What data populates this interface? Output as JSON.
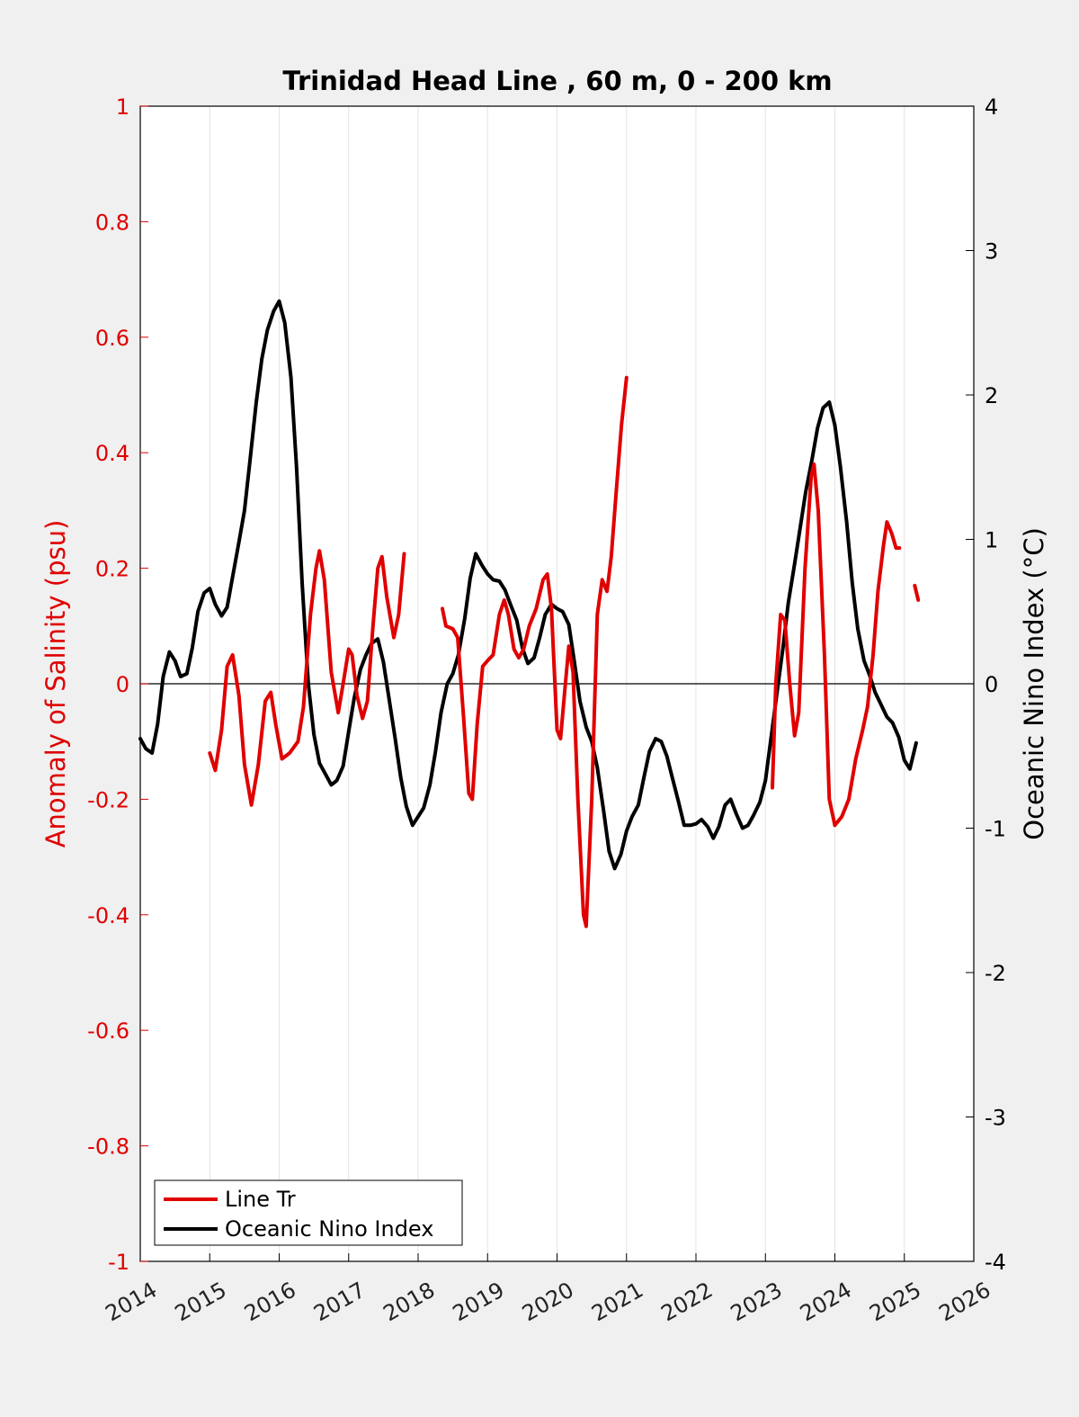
{
  "chart_data": {
    "type": "line",
    "title": "Trinidad Head Line , 60 m, 0 - 200 km",
    "ylabel_left": "Anomaly of Salinity (psu)",
    "ylabel_right": "Oceanic Nino Index (°C)",
    "xlim": [
      2014,
      2026
    ],
    "ylim_left": [
      -1,
      1
    ],
    "ylim_right": [
      -4,
      4
    ],
    "x_ticks": [
      "2014",
      "2015",
      "2016",
      "2017",
      "2018",
      "2019",
      "2020",
      "2021",
      "2022",
      "2023",
      "2024",
      "2025",
      "2026"
    ],
    "y_left_ticks": [
      "-1",
      "-0.8",
      "-0.6",
      "-0.4",
      "-0.2",
      "0",
      "0.2",
      "0.4",
      "0.6",
      "0.8",
      "1"
    ],
    "y_right_ticks": [
      "-4",
      "-3",
      "-2",
      "-1",
      "0",
      "1",
      "2",
      "3",
      "4"
    ],
    "grid": "vertical",
    "legend_position": "bottom-left",
    "colors": {
      "salinity": "#e00000",
      "oni": "#000000",
      "left_axis": "#e00000",
      "right_axis": "#000000"
    },
    "series": [
      {
        "name": "Line Tr",
        "axis": "left",
        "segments": [
          [
            [
              2015.0,
              -0.12
            ],
            [
              2015.08,
              -0.15
            ],
            [
              2015.17,
              -0.08
            ],
            [
              2015.25,
              0.03
            ],
            [
              2015.33,
              0.05
            ],
            [
              2015.42,
              -0.02
            ],
            [
              2015.5,
              -0.14
            ],
            [
              2015.6,
              -0.21
            ],
            [
              2015.7,
              -0.14
            ],
            [
              2015.8,
              -0.03
            ],
            [
              2015.88,
              -0.015
            ],
            [
              2015.95,
              -0.07
            ],
            [
              2016.04,
              -0.13
            ],
            [
              2016.15,
              -0.12
            ],
            [
              2016.27,
              -0.1
            ],
            [
              2016.35,
              -0.04
            ],
            [
              2016.45,
              0.12
            ],
            [
              2016.53,
              0.2
            ],
            [
              2016.58,
              0.23
            ],
            [
              2016.65,
              0.18
            ],
            [
              2016.75,
              0.02
            ],
            [
              2016.85,
              -0.05
            ],
            [
              2016.92,
              0.0
            ],
            [
              2017.0,
              0.06
            ],
            [
              2017.05,
              0.05
            ],
            [
              2017.12,
              -0.02
            ],
            [
              2017.2,
              -0.06
            ],
            [
              2017.27,
              -0.03
            ],
            [
              2017.35,
              0.1
            ],
            [
              2017.42,
              0.2
            ],
            [
              2017.48,
              0.22
            ],
            [
              2017.55,
              0.15
            ],
            [
              2017.65,
              0.08
            ],
            [
              2017.72,
              0.12
            ],
            [
              2017.8,
              0.225
            ]
          ],
          [
            [
              2018.35,
              0.13
            ],
            [
              2018.4,
              0.1
            ],
            [
              2018.5,
              0.095
            ],
            [
              2018.57,
              0.08
            ],
            [
              2018.65,
              -0.05
            ],
            [
              2018.73,
              -0.19
            ],
            [
              2018.78,
              -0.2
            ],
            [
              2018.85,
              -0.07
            ],
            [
              2018.93,
              0.03
            ],
            [
              2019.0,
              0.04
            ],
            [
              2019.08,
              0.05
            ],
            [
              2019.17,
              0.12
            ],
            [
              2019.24,
              0.145
            ],
            [
              2019.3,
              0.12
            ],
            [
              2019.38,
              0.06
            ],
            [
              2019.45,
              0.045
            ],
            [
              2019.52,
              0.06
            ],
            [
              2019.6,
              0.1
            ],
            [
              2019.7,
              0.13
            ],
            [
              2019.8,
              0.18
            ],
            [
              2019.86,
              0.19
            ],
            [
              2019.92,
              0.13
            ],
            [
              2020.0,
              -0.08
            ],
            [
              2020.05,
              -0.095
            ],
            [
              2020.12,
              0.0
            ],
            [
              2020.17,
              0.065
            ],
            [
              2020.23,
              0.02
            ],
            [
              2020.3,
              -0.2
            ],
            [
              2020.38,
              -0.4
            ],
            [
              2020.42,
              -0.42
            ],
            [
              2020.5,
              -0.2
            ],
            [
              2020.58,
              0.12
            ],
            [
              2020.65,
              0.18
            ],
            [
              2020.72,
              0.16
            ],
            [
              2020.78,
              0.22
            ],
            [
              2020.85,
              0.33
            ],
            [
              2020.93,
              0.45
            ],
            [
              2021.0,
              0.53
            ]
          ],
          [
            [
              2023.1,
              -0.18
            ],
            [
              2023.15,
              0.0
            ],
            [
              2023.22,
              0.12
            ],
            [
              2023.28,
              0.11
            ],
            [
              2023.35,
              0.0
            ],
            [
              2023.42,
              -0.09
            ],
            [
              2023.48,
              -0.05
            ],
            [
              2023.57,
              0.2
            ],
            [
              2023.66,
              0.36
            ],
            [
              2023.7,
              0.38
            ],
            [
              2023.76,
              0.3
            ],
            [
              2023.85,
              0.05
            ],
            [
              2023.92,
              -0.2
            ],
            [
              2024.0,
              -0.245
            ],
            [
              2024.1,
              -0.23
            ],
            [
              2024.2,
              -0.2
            ],
            [
              2024.3,
              -0.13
            ],
            [
              2024.4,
              -0.08
            ],
            [
              2024.47,
              -0.04
            ],
            [
              2024.55,
              0.05
            ],
            [
              2024.62,
              0.16
            ],
            [
              2024.7,
              0.24
            ],
            [
              2024.75,
              0.28
            ],
            [
              2024.82,
              0.26
            ],
            [
              2024.88,
              0.235
            ],
            [
              2024.93,
              0.235
            ]
          ],
          [
            [
              2025.15,
              0.17
            ],
            [
              2025.2,
              0.145
            ]
          ]
        ]
      },
      {
        "name": "Oceanic Nino Index",
        "axis": "right",
        "segments": [
          [
            [
              2014.0,
              -0.38
            ],
            [
              2014.08,
              -0.45
            ],
            [
              2014.17,
              -0.48
            ],
            [
              2014.25,
              -0.28
            ],
            [
              2014.33,
              0.05
            ],
            [
              2014.42,
              0.22
            ],
            [
              2014.5,
              0.16
            ],
            [
              2014.58,
              0.05
            ],
            [
              2014.67,
              0.07
            ],
            [
              2014.75,
              0.25
            ],
            [
              2014.83,
              0.5
            ],
            [
              2014.92,
              0.63
            ],
            [
              2015.0,
              0.66
            ],
            [
              2015.08,
              0.55
            ],
            [
              2015.17,
              0.47
            ],
            [
              2015.25,
              0.53
            ],
            [
              2015.33,
              0.74
            ],
            [
              2015.42,
              0.98
            ],
            [
              2015.5,
              1.2
            ],
            [
              2015.58,
              1.55
            ],
            [
              2015.67,
              1.95
            ],
            [
              2015.75,
              2.25
            ],
            [
              2015.83,
              2.45
            ],
            [
              2015.92,
              2.58
            ],
            [
              2016.0,
              2.65
            ],
            [
              2016.08,
              2.5
            ],
            [
              2016.17,
              2.12
            ],
            [
              2016.25,
              1.5
            ],
            [
              2016.33,
              0.7
            ],
            [
              2016.42,
              0.0
            ],
            [
              2016.5,
              -0.35
            ],
            [
              2016.58,
              -0.55
            ],
            [
              2016.67,
              -0.63
            ],
            [
              2016.75,
              -0.7
            ],
            [
              2016.83,
              -0.67
            ],
            [
              2016.92,
              -0.57
            ],
            [
              2017.0,
              -0.33
            ],
            [
              2017.08,
              -0.1
            ],
            [
              2017.17,
              0.1
            ],
            [
              2017.25,
              0.2
            ],
            [
              2017.33,
              0.28
            ],
            [
              2017.42,
              0.31
            ],
            [
              2017.5,
              0.15
            ],
            [
              2017.58,
              -0.1
            ],
            [
              2017.67,
              -0.38
            ],
            [
              2017.75,
              -0.65
            ],
            [
              2017.83,
              -0.85
            ],
            [
              2017.92,
              -0.98
            ],
            [
              2018.0,
              -0.92
            ],
            [
              2018.08,
              -0.86
            ],
            [
              2018.17,
              -0.7
            ],
            [
              2018.25,
              -0.47
            ],
            [
              2018.33,
              -0.2
            ],
            [
              2018.42,
              0.0
            ],
            [
              2018.5,
              0.07
            ],
            [
              2018.58,
              0.2
            ],
            [
              2018.67,
              0.45
            ],
            [
              2018.75,
              0.73
            ],
            [
              2018.83,
              0.9
            ],
            [
              2018.92,
              0.82
            ],
            [
              2019.0,
              0.76
            ],
            [
              2019.08,
              0.72
            ],
            [
              2019.17,
              0.71
            ],
            [
              2019.25,
              0.65
            ],
            [
              2019.33,
              0.55
            ],
            [
              2019.42,
              0.44
            ],
            [
              2019.5,
              0.25
            ],
            [
              2019.58,
              0.14
            ],
            [
              2019.67,
              0.18
            ],
            [
              2019.75,
              0.32
            ],
            [
              2019.83,
              0.48
            ],
            [
              2019.92,
              0.55
            ],
            [
              2020.0,
              0.52
            ],
            [
              2020.08,
              0.5
            ],
            [
              2020.17,
              0.41
            ],
            [
              2020.25,
              0.15
            ],
            [
              2020.33,
              -0.12
            ],
            [
              2020.42,
              -0.3
            ],
            [
              2020.5,
              -0.4
            ],
            [
              2020.58,
              -0.58
            ],
            [
              2020.67,
              -0.88
            ],
            [
              2020.75,
              -1.16
            ],
            [
              2020.83,
              -1.28
            ],
            [
              2020.92,
              -1.18
            ],
            [
              2021.0,
              -1.02
            ],
            [
              2021.08,
              -0.92
            ],
            [
              2021.17,
              -0.84
            ],
            [
              2021.25,
              -0.65
            ],
            [
              2021.33,
              -0.47
            ],
            [
              2021.42,
              -0.38
            ],
            [
              2021.5,
              -0.4
            ],
            [
              2021.58,
              -0.5
            ],
            [
              2021.67,
              -0.67
            ],
            [
              2021.75,
              -0.82
            ],
            [
              2021.83,
              -0.98
            ],
            [
              2021.92,
              -0.98
            ],
            [
              2022.0,
              -0.97
            ],
            [
              2022.08,
              -0.94
            ],
            [
              2022.17,
              -0.99
            ],
            [
              2022.25,
              -1.07
            ],
            [
              2022.33,
              -0.99
            ],
            [
              2022.42,
              -0.84
            ],
            [
              2022.5,
              -0.8
            ],
            [
              2022.58,
              -0.9
            ],
            [
              2022.67,
              -1.0
            ],
            [
              2022.75,
              -0.98
            ],
            [
              2022.83,
              -0.91
            ],
            [
              2022.92,
              -0.82
            ],
            [
              2023.0,
              -0.67
            ],
            [
              2023.08,
              -0.38
            ],
            [
              2023.17,
              -0.05
            ],
            [
              2023.25,
              0.24
            ],
            [
              2023.33,
              0.56
            ],
            [
              2023.42,
              0.83
            ],
            [
              2023.5,
              1.08
            ],
            [
              2023.58,
              1.33
            ],
            [
              2023.67,
              1.55
            ],
            [
              2023.75,
              1.77
            ],
            [
              2023.83,
              1.91
            ],
            [
              2023.92,
              1.95
            ],
            [
              2024.0,
              1.79
            ],
            [
              2024.08,
              1.5
            ],
            [
              2024.17,
              1.12
            ],
            [
              2024.25,
              0.7
            ],
            [
              2024.33,
              0.38
            ],
            [
              2024.42,
              0.16
            ],
            [
              2024.5,
              0.06
            ],
            [
              2024.58,
              -0.06
            ],
            [
              2024.67,
              -0.15
            ],
            [
              2024.75,
              -0.23
            ],
            [
              2024.83,
              -0.27
            ],
            [
              2024.92,
              -0.37
            ],
            [
              2025.0,
              -0.53
            ],
            [
              2025.08,
              -0.59
            ],
            [
              2025.17,
              -0.41
            ]
          ]
        ]
      }
    ]
  }
}
